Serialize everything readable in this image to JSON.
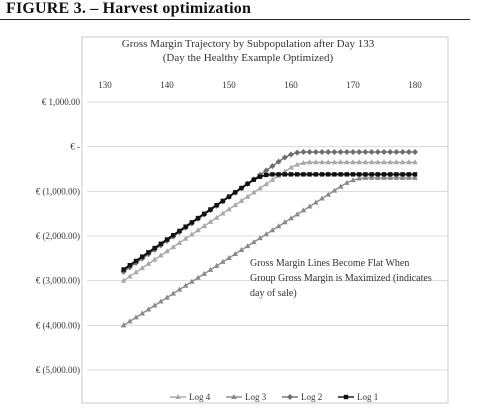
{
  "figure": {
    "title": "FIGURE 3. – Harvest optimization"
  },
  "chart_data": {
    "type": "line",
    "title": "Gross Margin Trajectory by Subpopulation after Day 133",
    "subtitle": "(Day the Healthy Example Optimized)",
    "xlabel": "",
    "ylabel": "",
    "xlim": [
      130,
      180
    ],
    "ylim": [
      -5000,
      1000
    ],
    "x_ticks": [
      "130",
      "140",
      "150",
      "160",
      "170",
      "180"
    ],
    "x_tick_values": [
      130,
      140,
      150,
      160,
      170,
      180
    ],
    "y_ticks": [
      "€ 1,000.00",
      "€ -",
      "€ (1,000.00)",
      "€ (2,000.00)",
      "€ (3,000.00)",
      "€ (4,000.00)",
      "€ (5,000.00)"
    ],
    "y_tick_values": [
      1000,
      0,
      -1000,
      -2000,
      -3000,
      -4000,
      -5000
    ],
    "grid": "horizontal",
    "legend_position": "bottom",
    "annotation": "Gross Margin Lines Become Flat When Group Gross Margin is Maximized (indicates day of sale)",
    "series": [
      {
        "name": "Log 4",
        "marker": "triangle",
        "color": "#a8a8a8",
        "start": [
          133,
          -3000
        ],
        "peak": [
          163,
          -350
        ],
        "end": [
          180,
          -350
        ]
      },
      {
        "name": "Log 3",
        "marker": "triangle",
        "color": "#8a8a8a",
        "start": [
          133,
          -4000
        ],
        "peak": [
          172,
          -700
        ],
        "end": [
          180,
          -700
        ]
      },
      {
        "name": "Log 2",
        "marker": "diamond",
        "color": "#6e6e6e",
        "start": [
          133,
          -2800
        ],
        "peak": [
          162,
          -120
        ],
        "end": [
          180,
          -120
        ]
      },
      {
        "name": "Log 1",
        "marker": "square",
        "color": "#111111",
        "start": [
          133,
          -2750
        ],
        "peak": [
          157,
          -620
        ],
        "end": [
          180,
          -620
        ]
      }
    ]
  }
}
